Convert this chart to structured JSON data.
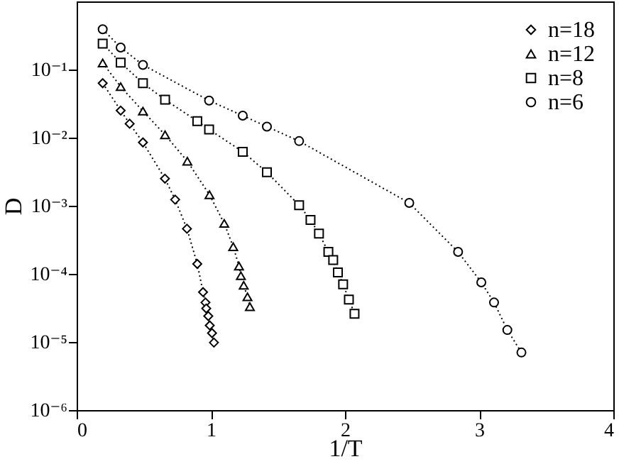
{
  "chart_data": {
    "type": "line",
    "xlabel": "1/T",
    "ylabel": "D",
    "log": "y",
    "xlim": [
      0,
      4
    ],
    "xticks": [
      0,
      1,
      2,
      3,
      4
    ],
    "ylim": [
      1e-06,
      1
    ],
    "yticks": [
      {
        "value": 1e-06,
        "label": "10⁻⁶"
      },
      {
        "value": 1e-05,
        "label": "10⁻⁵"
      },
      {
        "value": 0.0001,
        "label": "10⁻⁴"
      },
      {
        "value": 0.001,
        "label": "10⁻³"
      },
      {
        "value": 0.01,
        "label": "10⁻²"
      },
      {
        "value": 0.1,
        "label": "10⁻¹"
      }
    ],
    "grid": false,
    "legend": "top right",
    "line_style": "dotted",
    "series": [
      {
        "name": "n=18",
        "color": "#000000",
        "marker": "diamond",
        "x": [
          0.194,
          0.328,
          0.395,
          0.494,
          0.658,
          0.734,
          0.822,
          0.899,
          0.942,
          0.96,
          0.966,
          0.981,
          0.992,
          1.009,
          1.023
        ],
        "values": [
          0.063,
          0.025,
          0.016,
          0.0085,
          0.0025,
          0.00123,
          0.00046,
          0.00014,
          5.4e-05,
          3.8e-05,
          3.1e-05,
          2.4e-05,
          1.75e-05,
          1.35e-05,
          9.8e-06
        ]
      },
      {
        "name": "n=12",
        "color": "#000000",
        "marker": "triangle",
        "x": [
          0.194,
          0.328,
          0.494,
          0.659,
          0.825,
          0.99,
          1.1,
          1.167,
          1.21,
          1.224,
          1.245,
          1.273,
          1.291
        ],
        "values": [
          0.125,
          0.056,
          0.0245,
          0.011,
          0.0045,
          0.00145,
          0.00055,
          0.00025,
          0.00013,
          9.4e-05,
          6.8e-05,
          4.6e-05,
          3.3e-05
        ]
      },
      {
        "name": "n=8",
        "color": "#000000",
        "marker": "square",
        "x": [
          0.194,
          0.328,
          0.494,
          0.659,
          0.899,
          0.987,
          1.238,
          1.418,
          1.658,
          1.743,
          1.806,
          1.876,
          1.912,
          1.947,
          1.986,
          2.029,
          2.071
        ],
        "values": [
          0.24,
          0.126,
          0.063,
          0.036,
          0.0175,
          0.0132,
          0.0062,
          0.0031,
          0.00102,
          0.00062,
          0.00039,
          0.00021,
          0.00016,
          0.000105,
          7e-05,
          4.2e-05,
          2.6e-05
        ]
      },
      {
        "name": "n=6",
        "color": "#000000",
        "marker": "circle",
        "x": [
          0.194,
          0.328,
          0.494,
          0.987,
          1.238,
          1.418,
          1.658,
          2.479,
          2.843,
          3.016,
          3.111,
          3.21,
          3.315
        ],
        "values": [
          0.39,
          0.21,
          0.117,
          0.035,
          0.021,
          0.0145,
          0.0089,
          0.0011,
          0.00021,
          7.5e-05,
          3.8e-05,
          1.5e-05,
          7e-06
        ]
      }
    ]
  }
}
